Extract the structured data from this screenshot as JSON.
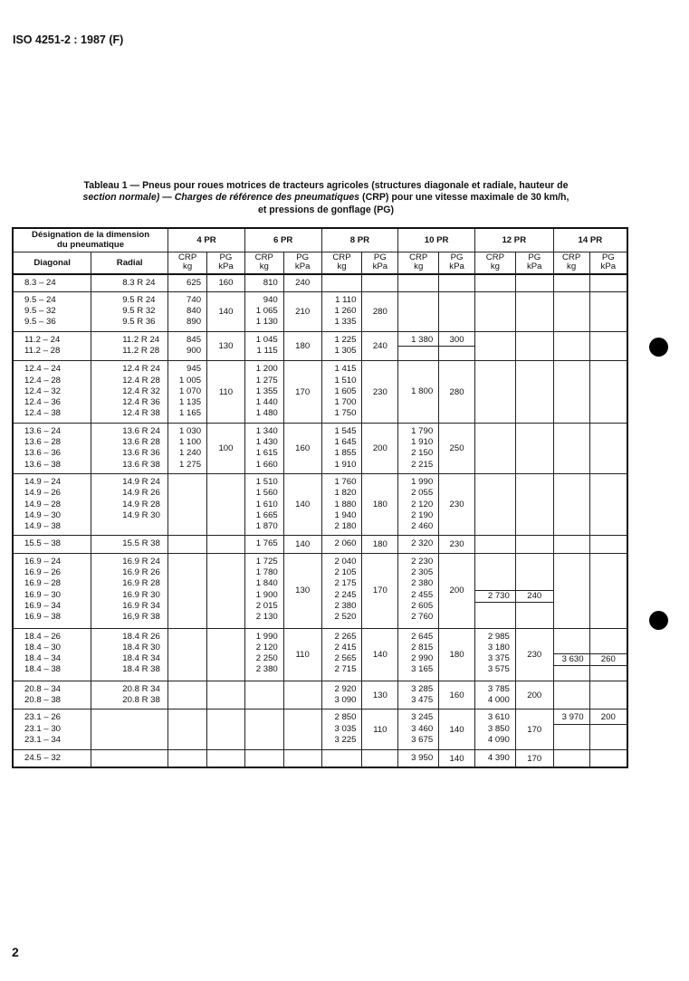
{
  "header": "ISO 4251-2 : 1987 (F)",
  "title": {
    "part1": "Tableau 1 — Pneus pour roues motrices de tracteurs agricoles (structures diagonale et radiale, hauteur de",
    "part2_italic": "section normale)",
    "part3": " — ",
    "part4_italic": "Charges de référence des pneumatiques",
    "part5": " (CRP) pour une vitesse maximale de 30 km/h,",
    "part6": "et pressions de gonflage (PG)"
  },
  "table": {
    "designation_header": "Désignation de la dimension du pneumatique",
    "diagonal_header": "Diagonal",
    "radial_header": "Radial",
    "ply_ratings": [
      "4 PR",
      "6 PR",
      "8 PR",
      "10 PR",
      "12 PR",
      "14 PR"
    ],
    "crp_header": "CRP",
    "crp_unit": "kg",
    "pg_header": "PG",
    "pg_unit": "kPa",
    "groups": [
      {
        "diag": [
          "8.3 – 24"
        ],
        "rad": [
          "8.3 R 24"
        ],
        "pr": [
          {
            "crp": [
              "625"
            ],
            "pg": "160"
          },
          {
            "crp": [
              "810"
            ],
            "pg": "240"
          },
          null,
          null,
          null,
          null
        ]
      },
      {
        "diag": [
          "9.5 – 24",
          "9.5 – 32",
          "9.5 – 36"
        ],
        "rad": [
          "9.5 R 24",
          "9.5 R 32",
          "9.5 R 36"
        ],
        "pr": [
          {
            "crp": [
              "740",
              "840",
              "890"
            ],
            "pg": "140"
          },
          {
            "crp": [
              "940",
              "1 065",
              "1 130"
            ],
            "pg": "210"
          },
          {
            "crp": [
              "1 110",
              "1 260",
              "1 335"
            ],
            "pg": "280"
          },
          null,
          null,
          null
        ]
      },
      {
        "diag": [
          "11.2 – 24",
          "11.2 – 28"
        ],
        "rad": [
          "11.2 R 24",
          "11.2 R 28"
        ],
        "pr": [
          {
            "crp": [
              "845",
              "900"
            ],
            "pg": "130"
          },
          {
            "crp": [
              "1 045",
              "1 115"
            ],
            "pg": "180"
          },
          {
            "crp": [
              "1 225",
              "1 305"
            ],
            "pg": "240"
          },
          {
            "crp": [
              "1 380",
              ""
            ],
            "pg": "300",
            "boxed_row": 0
          },
          null,
          null
        ]
      },
      {
        "diag": [
          "12.4 – 24",
          "12.4 – 28",
          "12.4 – 32",
          "12.4 – 36",
          "12.4 – 38"
        ],
        "rad": [
          "12.4 R 24",
          "12.4 R 28",
          "12.4 R 32",
          "12.4 R 36",
          "12.4 R 38"
        ],
        "pr": [
          {
            "crp": [
              "945",
              "1 005",
              "1 070",
              "1 135",
              "1 165"
            ],
            "pg": "110"
          },
          {
            "crp": [
              "1 200",
              "1 275",
              "1 355",
              "1 440",
              "1 480"
            ],
            "pg": "170"
          },
          {
            "crp": [
              "1 415",
              "1 510",
              "1 605",
              "1 700",
              "1 750"
            ],
            "pg": "230"
          },
          {
            "crp": [
              "",
              "",
              "1 800",
              "",
              ""
            ],
            "pg": "280"
          },
          null,
          null
        ]
      },
      {
        "diag": [
          "13.6 – 24",
          "13.6 – 28",
          "13.6 – 36",
          "13.6 – 38"
        ],
        "rad": [
          "13.6 R 24",
          "13.6 R 28",
          "13.6 R 36",
          "13.6 R 38"
        ],
        "pr": [
          {
            "crp": [
              "1 030",
              "1 100",
              "1 240",
              "1 275"
            ],
            "pg": "100"
          },
          {
            "crp": [
              "1 340",
              "1 430",
              "1 615",
              "1 660"
            ],
            "pg": "160"
          },
          {
            "crp": [
              "1 545",
              "1 645",
              "1 855",
              "1 910"
            ],
            "pg": "200"
          },
          {
            "crp": [
              "1 790",
              "1 910",
              "2 150",
              "2 215"
            ],
            "pg": "250"
          },
          null,
          null
        ]
      },
      {
        "diag": [
          "14.9 – 24",
          "14.9 – 26",
          "14.9 – 28",
          "14.9 – 30",
          "14.9 – 38"
        ],
        "rad": [
          "14.9 R 24",
          "14.9 R 26",
          "14.9 R 28",
          "14.9 R 30",
          ""
        ],
        "pr": [
          null,
          {
            "crp": [
              "1 510",
              "1 560",
              "1 610",
              "1 665",
              "1 870"
            ],
            "pg": "140"
          },
          {
            "crp": [
              "1 760",
              "1 820",
              "1 880",
              "1 940",
              "2 180"
            ],
            "pg": "180"
          },
          {
            "crp": [
              "1 990",
              "2 055",
              "2 120",
              "2 190",
              "2 460"
            ],
            "pg": "230"
          },
          null,
          null
        ]
      },
      {
        "diag": [
          "15.5 – 38"
        ],
        "rad": [
          "15.5 R 38"
        ],
        "pr": [
          null,
          {
            "crp": [
              "1 765"
            ],
            "pg": "140"
          },
          {
            "crp": [
              "2 060"
            ],
            "pg": "180"
          },
          {
            "crp": [
              "2 320"
            ],
            "pg": "230"
          },
          null,
          null
        ]
      },
      {
        "diag": [
          "16.9 – 24",
          "16.9 – 26",
          "16.9 – 28",
          "16.9 – 30",
          "16.9 – 34",
          "16.9 – 38"
        ],
        "rad": [
          "16.9 R 24",
          "16.9 R 26",
          "16.9 R 28",
          "16.9 R 30",
          "16.9 R 34",
          "16,9 R 38"
        ],
        "pr": [
          null,
          {
            "crp": [
              "1 725",
              "1 780",
              "1 840",
              "1 900",
              "2 015",
              "2 130"
            ],
            "pg": "130"
          },
          {
            "crp": [
              "2 040",
              "2 105",
              "2 175",
              "2 245",
              "2 380",
              "2 520"
            ],
            "pg": "170"
          },
          {
            "crp": [
              "2 230",
              "2 305",
              "2 380",
              "2 455",
              "2 605",
              "2 760"
            ],
            "pg": "200"
          },
          {
            "crp": [
              "",
              "",
              "",
              "2 730",
              "",
              ""
            ],
            "pg": "240",
            "boxed_row": 3
          },
          null
        ]
      },
      {
        "diag": [
          "18.4 – 26",
          "18.4 – 30",
          "18.4 – 34",
          "18.4 – 38"
        ],
        "rad": [
          "18.4 R 26",
          "18.4 R 30",
          "18.4 R 34",
          "18.4 R 38"
        ],
        "pr": [
          null,
          {
            "crp": [
              "1 990",
              "2 120",
              "2 250",
              "2 380"
            ],
            "pg": "110"
          },
          {
            "crp": [
              "2 265",
              "2 415",
              "2 565",
              "2 715"
            ],
            "pg": "140"
          },
          {
            "crp": [
              "2 645",
              "2 815",
              "2 990",
              "3 165"
            ],
            "pg": "180"
          },
          {
            "crp": [
              "2 985",
              "3 180",
              "3 375",
              "3 575"
            ],
            "pg": "230"
          },
          {
            "crp": [
              "",
              "",
              "3 630",
              ""
            ],
            "pg": "260",
            "boxed_row": 2
          }
        ]
      },
      {
        "diag": [
          "20.8 – 34",
          "20.8 – 38"
        ],
        "rad": [
          "20.8 R 34",
          "20.8 R 38"
        ],
        "pr": [
          null,
          null,
          {
            "crp": [
              "2 920",
              "3 090"
            ],
            "pg": "130"
          },
          {
            "crp": [
              "3 285",
              "3 475"
            ],
            "pg": "160"
          },
          {
            "crp": [
              "3 785",
              "4 000"
            ],
            "pg": "200"
          },
          null
        ]
      },
      {
        "diag": [
          "23.1 – 26",
          "23.1 – 30",
          "23.1 – 34"
        ],
        "rad": [
          "",
          "",
          ""
        ],
        "pr": [
          null,
          null,
          {
            "crp": [
              "2 850",
              "3 035",
              "3 225"
            ],
            "pg": "110"
          },
          {
            "crp": [
              "3 245",
              "3 460",
              "3 675"
            ],
            "pg": "140"
          },
          {
            "crp": [
              "3 610",
              "3 850",
              "4 090"
            ],
            "pg": "170"
          },
          {
            "crp": [
              "3 970",
              "",
              ""
            ],
            "pg": "200",
            "boxed_row": 0
          }
        ]
      },
      {
        "diag": [
          "24.5 – 32"
        ],
        "rad": [
          ""
        ],
        "pr": [
          null,
          null,
          null,
          {
            "crp": [
              "3 950"
            ],
            "pg": "140"
          },
          {
            "crp": [
              "4 390"
            ],
            "pg": "170"
          },
          null
        ]
      }
    ]
  },
  "page_number": "2"
}
